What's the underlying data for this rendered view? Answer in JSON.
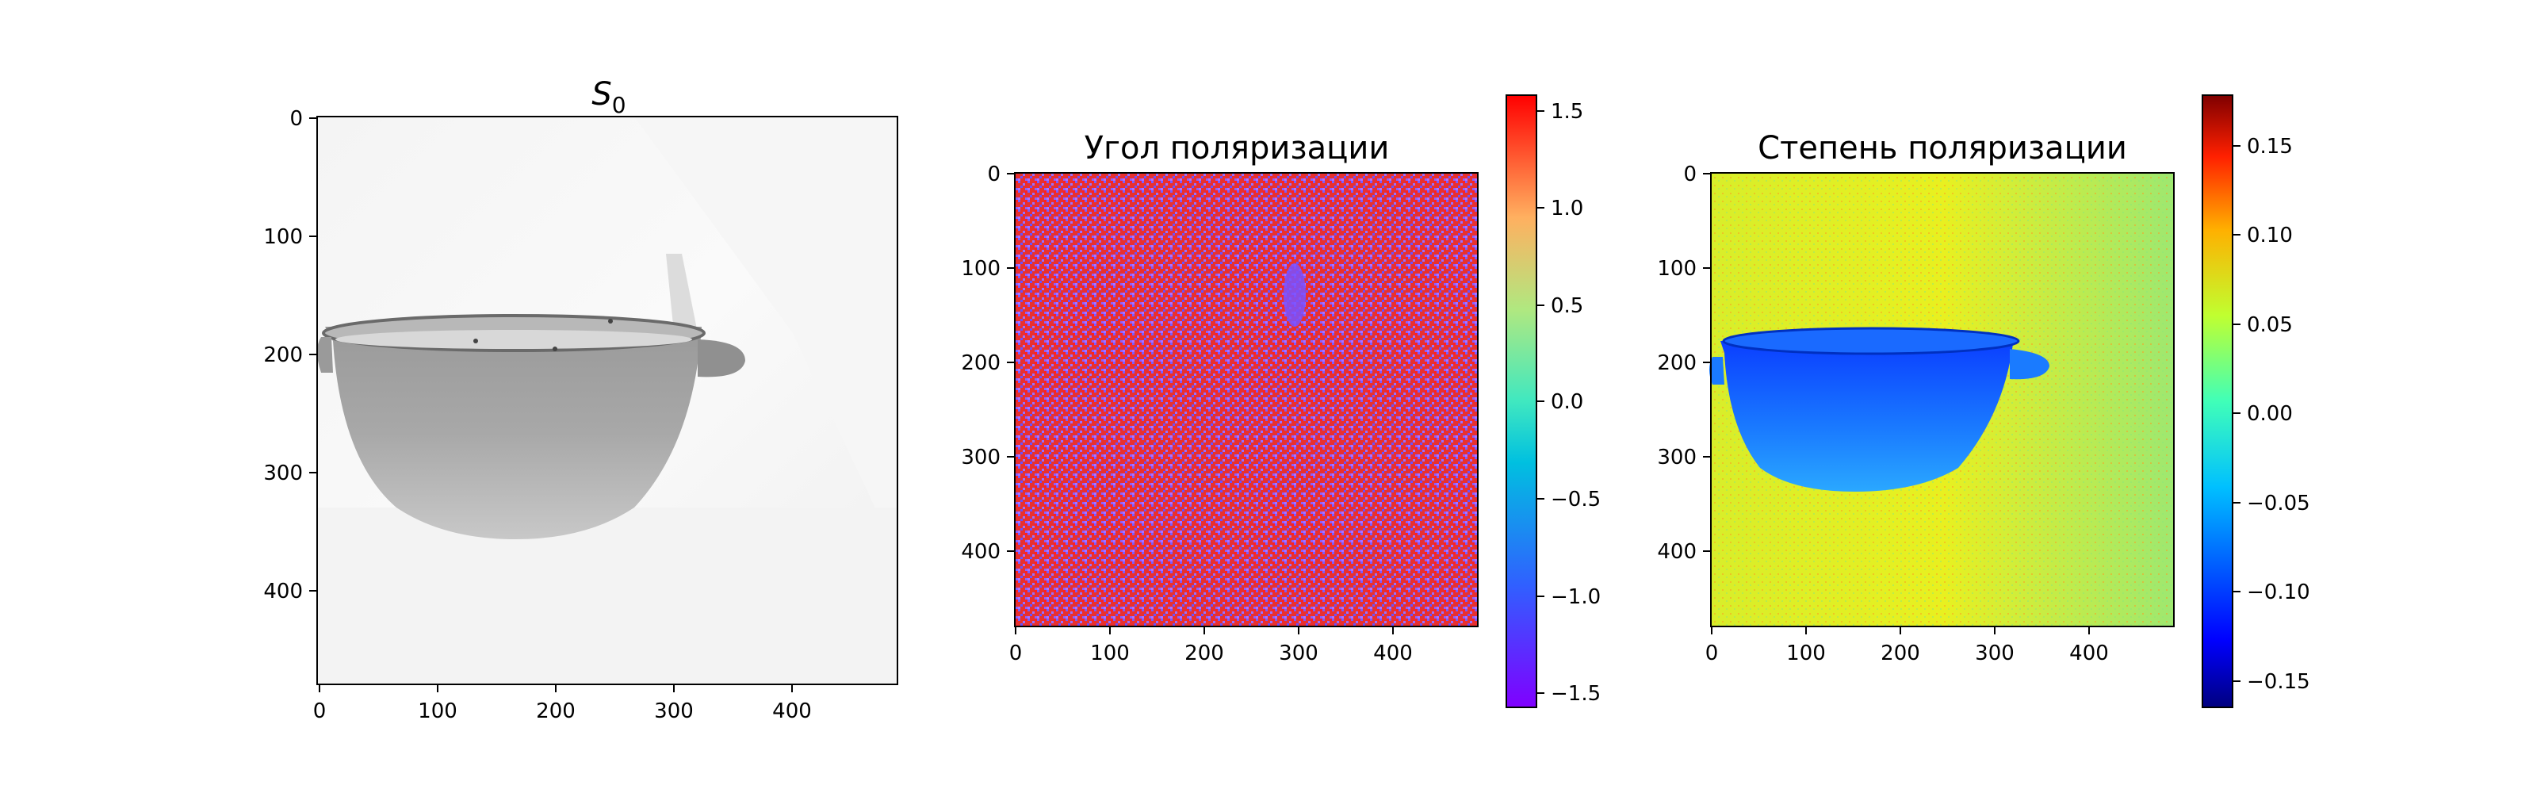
{
  "chart_data": [
    {
      "type": "heatmap",
      "title": "S",
      "title_subscript": "0",
      "colormap": "gray",
      "x_ticks": [
        "0",
        "100",
        "200",
        "300",
        "400"
      ],
      "y_ticks": [
        "0",
        "100",
        "200",
        "300",
        "400"
      ],
      "xlim": [
        0,
        490
      ],
      "ylim": [
        480,
        0
      ]
    },
    {
      "type": "heatmap",
      "title": "Угол поляризации",
      "colormap": "rainbow",
      "x_ticks": [
        "0",
        "100",
        "200",
        "300",
        "400"
      ],
      "y_ticks": [
        "0",
        "100",
        "200",
        "300",
        "400"
      ],
      "xlim": [
        0,
        490
      ],
      "ylim": [
        480,
        0
      ],
      "colorbar": {
        "ticks": [
          "1.5",
          "1.0",
          "0.5",
          "0.0",
          "−0.5",
          "−1.0",
          "−1.5"
        ],
        "range": [
          -1.5708,
          1.5708
        ]
      }
    },
    {
      "type": "heatmap",
      "title": "Степень поляризации",
      "colormap": "jet",
      "x_ticks": [
        "0",
        "100",
        "200",
        "300",
        "400"
      ],
      "y_ticks": [
        "0",
        "100",
        "200",
        "300",
        "400"
      ],
      "xlim": [
        0,
        490
      ],
      "ylim": [
        480,
        0
      ],
      "colorbar": {
        "ticks": [
          "0.15",
          "0.10",
          "0.05",
          "0.00",
          "−0.05",
          "−0.10",
          "−0.15"
        ],
        "range": [
          -0.165,
          0.178
        ]
      }
    }
  ]
}
